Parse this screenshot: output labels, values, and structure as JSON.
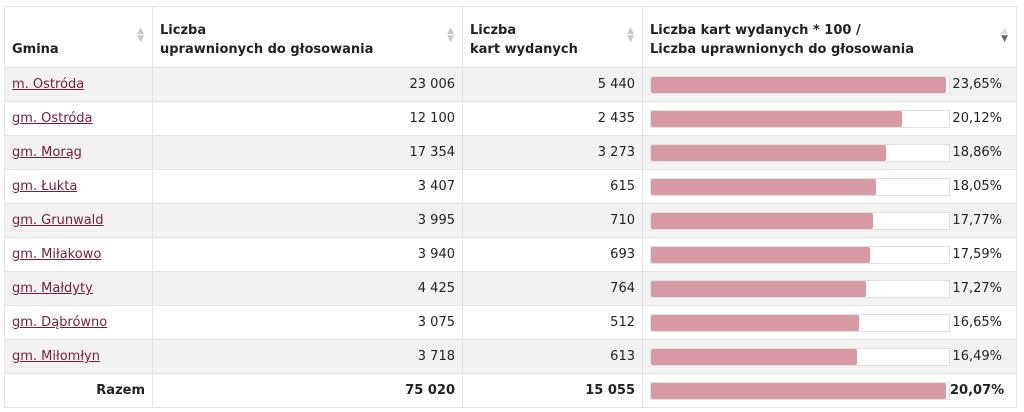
{
  "table": {
    "headers": {
      "gmina": "Gmina",
      "uprawnieni_line1": "Liczba",
      "uprawnieni_line2": "uprawnionych do głosowania",
      "karty_line1": "Liczba",
      "karty_line2": "kart wydanych",
      "ratio_line1": "Liczba kart wydanych * 100 /",
      "ratio_line2": "Liczba uprawnionych do głosowania"
    },
    "sort_icons": [
      "sort-both-icon",
      "sort-both-icon",
      "sort-both-icon",
      "sort-desc-icon"
    ],
    "rows": [
      {
        "name": "m. Ostróda",
        "uprawnieni": "23 006",
        "karty": "5 440",
        "pct": "23,65%",
        "value": 23.65
      },
      {
        "name": "gm. Ostróda",
        "uprawnieni": "12 100",
        "karty": "2 435",
        "pct": "20,12%",
        "value": 20.12
      },
      {
        "name": "gm. Morąg",
        "uprawnieni": "17 354",
        "karty": "3 273",
        "pct": "18,86%",
        "value": 18.86
      },
      {
        "name": "gm. Łukta",
        "uprawnieni": "3 407",
        "karty": "615",
        "pct": "18,05%",
        "value": 18.05
      },
      {
        "name": "gm. Grunwald",
        "uprawnieni": "3 995",
        "karty": "710",
        "pct": "17,77%",
        "value": 17.77
      },
      {
        "name": "gm. Miłakowo",
        "uprawnieni": "3 940",
        "karty": "693",
        "pct": "17,59%",
        "value": 17.59
      },
      {
        "name": "gm. Małdyty",
        "uprawnieni": "4 425",
        "karty": "764",
        "pct": "17,27%",
        "value": 17.27
      },
      {
        "name": "gm. Dąbrówno",
        "uprawnieni": "3 075",
        "karty": "512",
        "pct": "16,65%",
        "value": 16.65
      },
      {
        "name": "gm. Miłomłyn",
        "uprawnieni": "3 718",
        "karty": "613",
        "pct": "16,49%",
        "value": 16.49
      }
    ],
    "total": {
      "label": "Razem",
      "uprawnieni": "75 020",
      "karty": "15 055",
      "pct": "20,07%",
      "value": 20.07
    }
  },
  "colors": {
    "bar": "#d89aa5",
    "link": "#7a1f3a",
    "row_alt": "#f2f2f2"
  }
}
